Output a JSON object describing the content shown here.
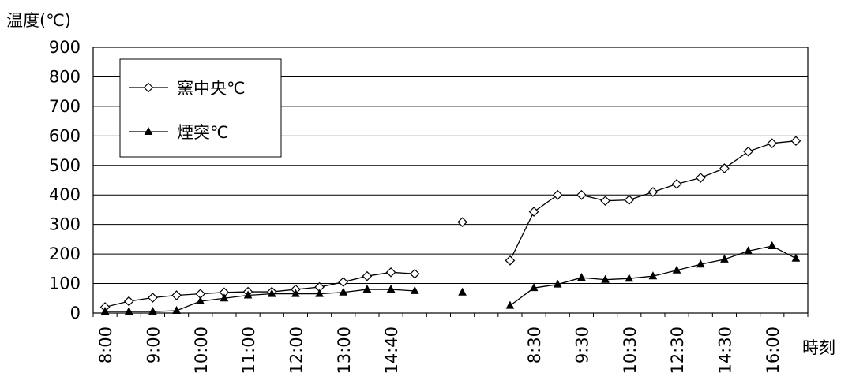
{
  "chart_data": {
    "type": "line",
    "ylabel": "温度(℃)",
    "xlabel": "時刻",
    "ylim": [
      0,
      900
    ],
    "yticks": [
      0,
      100,
      200,
      300,
      400,
      500,
      600,
      700,
      800,
      900
    ],
    "grid": true,
    "legend_position": "top-left",
    "n_slots": 30,
    "x_tick_labels": [
      {
        "slot": 0,
        "label": "8:00"
      },
      {
        "slot": 2,
        "label": "9:00"
      },
      {
        "slot": 4,
        "label": "10:00"
      },
      {
        "slot": 6,
        "label": "11:00"
      },
      {
        "slot": 8,
        "label": "12:00"
      },
      {
        "slot": 10,
        "label": "13:00"
      },
      {
        "slot": 12,
        "label": "14:40"
      },
      {
        "slot": 18,
        "label": "8:30"
      },
      {
        "slot": 20,
        "label": "9:30"
      },
      {
        "slot": 22,
        "label": "10:30"
      },
      {
        "slot": 24,
        "label": "12:30"
      },
      {
        "slot": 26,
        "label": "14:30"
      },
      {
        "slot": 28,
        "label": "16:00"
      }
    ],
    "series": [
      {
        "name": "窯中央℃",
        "marker": "diamond",
        "color": "#000000",
        "values": [
          20,
          40,
          52,
          60,
          65,
          70,
          72,
          72,
          80,
          88,
          105,
          125,
          138,
          133,
          null,
          308,
          null,
          178,
          343,
          400,
          400,
          380,
          383,
          410,
          437,
          458,
          490,
          547,
          575,
          583
        ]
      },
      {
        "name": "煙突℃",
        "marker": "triangle",
        "color": "#000000",
        "values": [
          5,
          5,
          5,
          8,
          40,
          50,
          60,
          65,
          65,
          65,
          70,
          80,
          80,
          75,
          null,
          70,
          null,
          25,
          85,
          97,
          120,
          113,
          117,
          125,
          145,
          165,
          182,
          210,
          227,
          185
        ]
      }
    ]
  }
}
